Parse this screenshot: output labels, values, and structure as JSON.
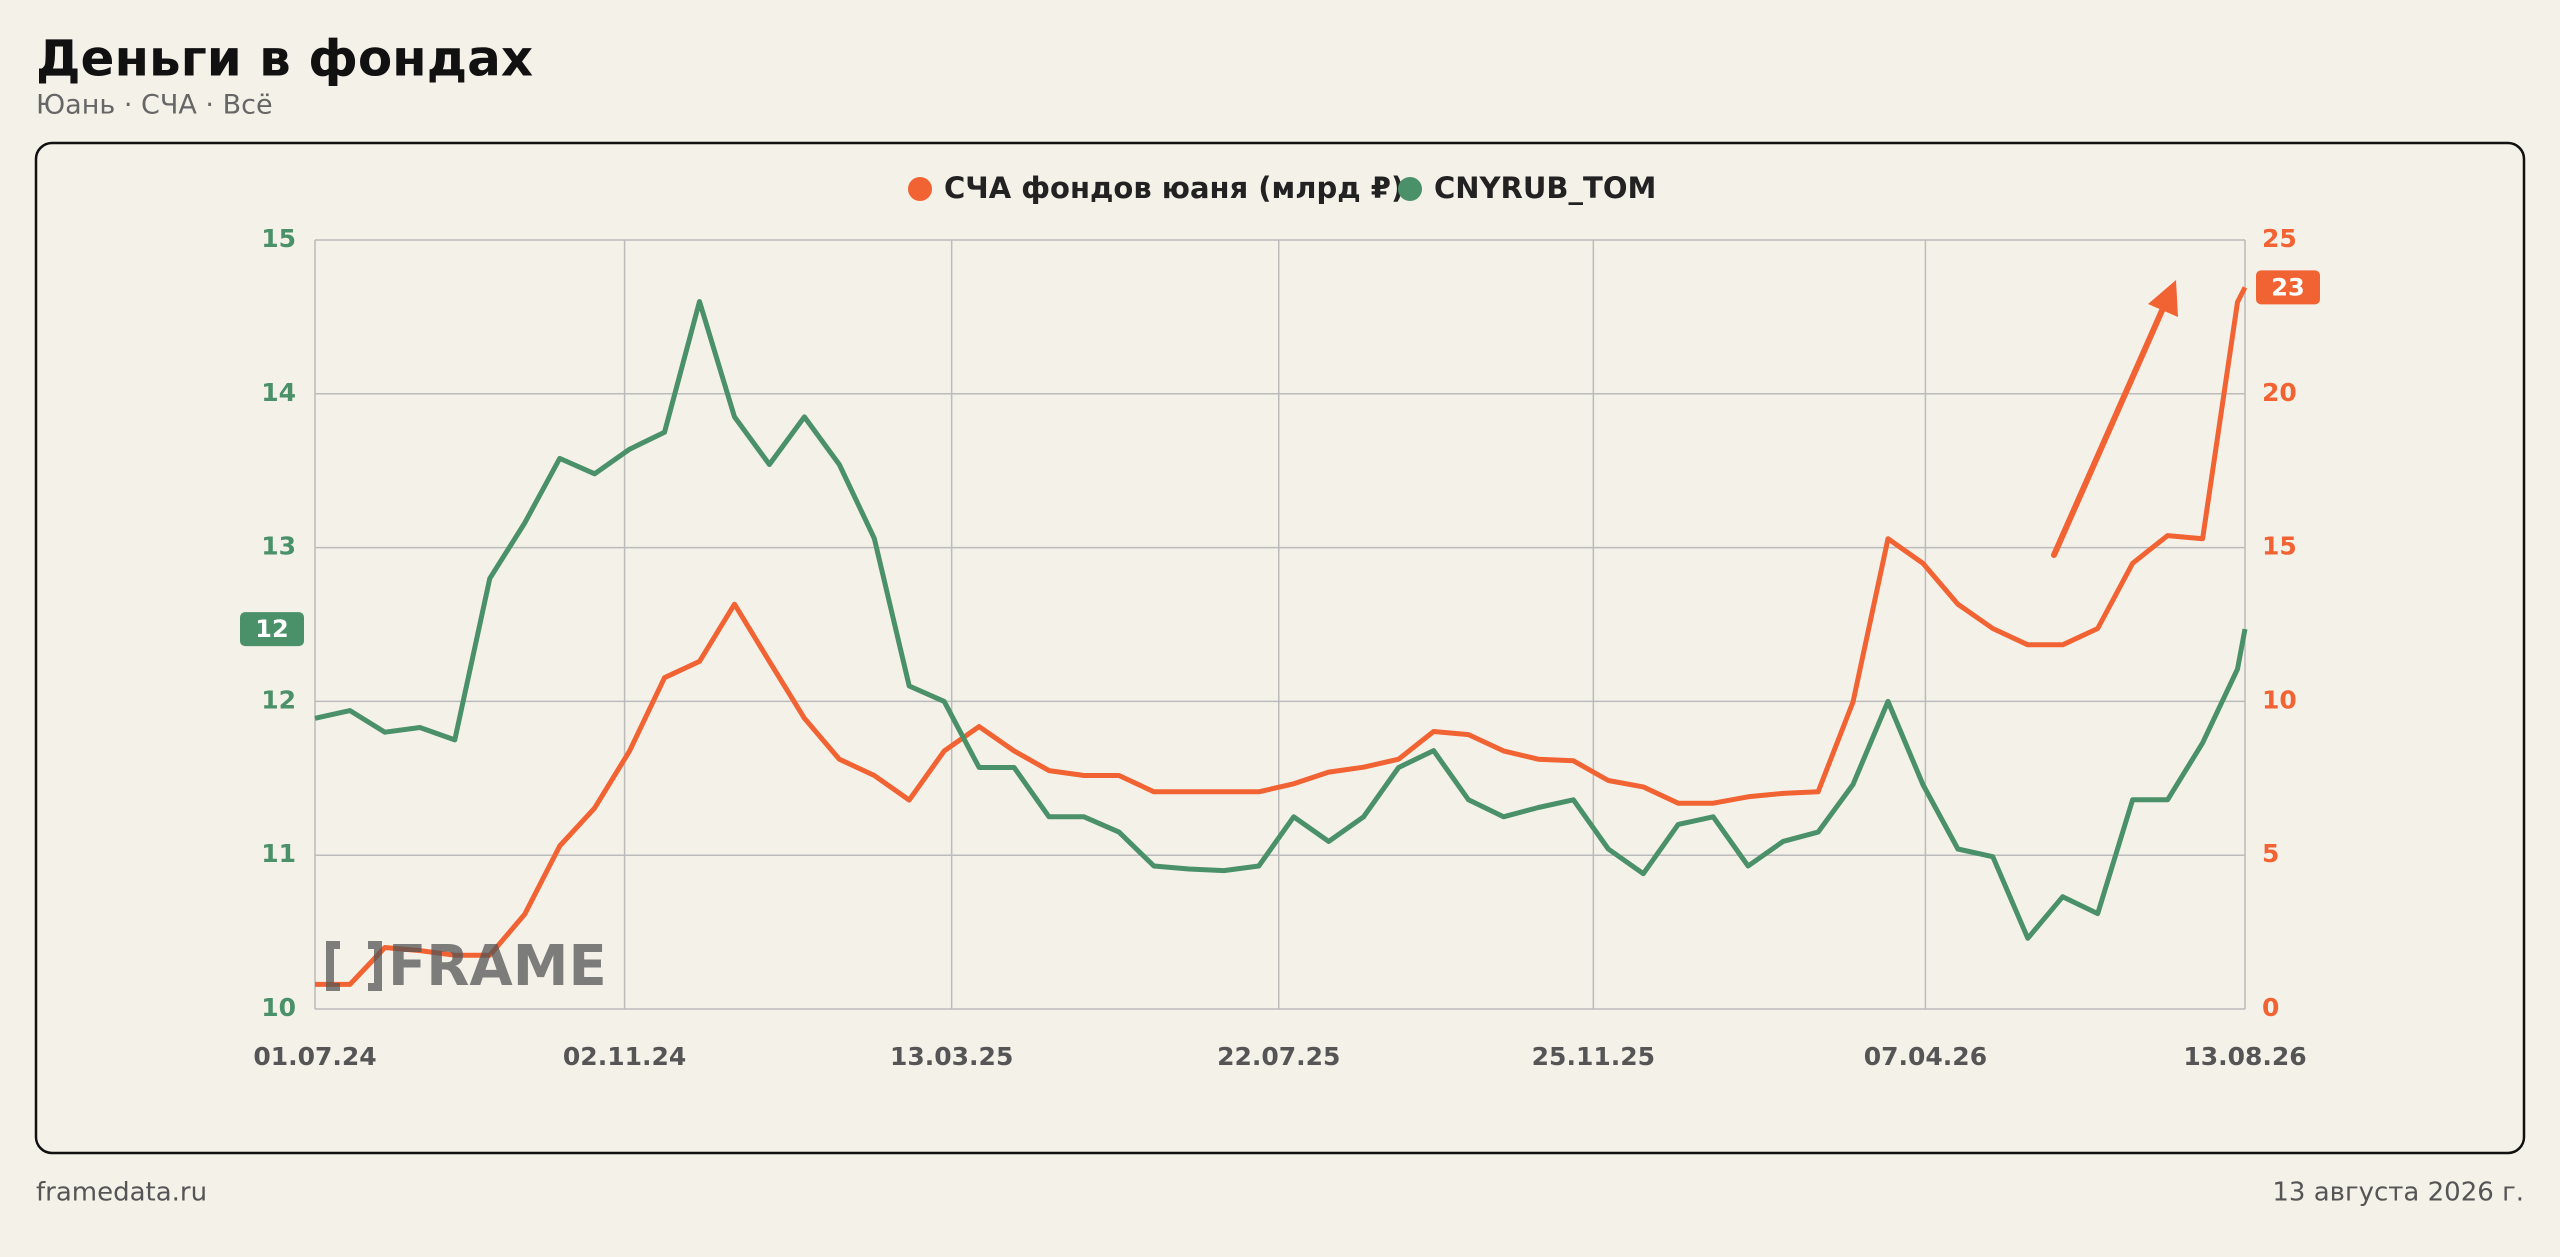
{
  "chart_data": {
    "type": "line",
    "title": "Деньги в фондах",
    "subtitle": "Юань · СЧА · Всё",
    "source": "framedata.ru",
    "date": "13 августа 2026 г.",
    "watermark": "FRAME",
    "x": [
      "2024-07-01",
      "2024-07-15",
      "2024-07-29",
      "2024-08-12",
      "2024-08-26",
      "2024-09-09",
      "2024-09-23",
      "2024-10-07",
      "2024-10-21",
      "2024-11-04",
      "2024-11-18",
      "2024-12-02",
      "2024-12-16",
      "2024-12-30",
      "2025-01-13",
      "2025-01-27",
      "2025-02-10",
      "2025-02-24",
      "2025-03-10",
      "2025-03-24",
      "2025-04-07",
      "2025-04-21",
      "2025-05-05",
      "2025-05-19",
      "2025-06-02",
      "2025-06-16",
      "2025-06-30",
      "2025-07-14",
      "2025-07-28",
      "2025-08-11",
      "2025-08-25",
      "2025-09-08",
      "2025-09-22",
      "2025-10-06",
      "2025-10-20",
      "2025-11-03",
      "2025-11-17",
      "2025-12-01",
      "2025-12-15",
      "2025-12-29",
      "2026-01-12",
      "2026-01-26",
      "2026-02-09",
      "2026-02-23",
      "2026-03-09",
      "2026-03-23",
      "2026-04-06",
      "2026-04-20",
      "2026-05-04",
      "2026-05-18",
      "2026-06-01",
      "2026-06-15",
      "2026-06-29",
      "2026-07-13",
      "2026-07-27",
      "2026-08-10",
      "2026-08-13"
    ],
    "series": [
      {
        "name": "СЧА фондов юаня (млрд ₽)",
        "color": "#f26333",
        "axis": "y2",
        "end_label": "23",
        "values": [
          0.8,
          0.8,
          2.0,
          1.9,
          1.75,
          1.75,
          3.08,
          5.3,
          6.53,
          8.39,
          10.77,
          11.3,
          13.16,
          11.3,
          9.45,
          8.12,
          7.59,
          6.79,
          8.39,
          9.18,
          8.39,
          7.75,
          7.59,
          7.59,
          7.06,
          7.06,
          7.06,
          7.06,
          7.32,
          7.7,
          7.86,
          8.12,
          9.02,
          8.92,
          8.39,
          8.12,
          8.07,
          7.43,
          7.22,
          6.69,
          6.69,
          6.9,
          7.01,
          7.06,
          9.98,
          15.29,
          14.49,
          13.16,
          12.37,
          11.84,
          11.84,
          12.37,
          14.49,
          15.39,
          15.29,
          22.98,
          23.46
        ]
      },
      {
        "name": "CNYRUB_TOM",
        "color": "#4a9068",
        "end_label": "12",
        "values": [
          11.89,
          11.94,
          11.8,
          11.83,
          11.75,
          12.8,
          13.16,
          13.58,
          13.48,
          13.64,
          13.75,
          14.6,
          13.85,
          13.54,
          13.85,
          13.54,
          13.06,
          12.1,
          12.0,
          11.57,
          11.57,
          11.25,
          11.25,
          11.15,
          10.93,
          10.91,
          10.9,
          10.93,
          11.25,
          11.09,
          11.25,
          11.57,
          11.68,
          11.36,
          11.25,
          11.31,
          11.36,
          11.04,
          10.88,
          11.2,
          11.25,
          10.93,
          11.09,
          11.15,
          11.46,
          12.0,
          11.46,
          11.04,
          10.99,
          10.46,
          10.73,
          10.62,
          11.36,
          11.36,
          11.73,
          12.21,
          12.47
        ]
      }
    ],
    "xlim": [
      "2024-07-01",
      "2026-08-13"
    ],
    "xticks": [
      {
        "value": "2024-07-01",
        "label": "01.07.24"
      },
      {
        "value": "2024-11-02",
        "label": "02.11.24"
      },
      {
        "value": "2025-03-13",
        "label": "13.03.25"
      },
      {
        "value": "2025-07-22",
        "label": "22.07.25"
      },
      {
        "value": "2025-11-25",
        "label": "25.11.25"
      },
      {
        "value": "2026-04-07",
        "label": "07.04.26"
      },
      {
        "value": "2026-08-13",
        "label": "13.08.26"
      }
    ],
    "ylim": [
      10,
      15
    ],
    "yticks": [
      10,
      11,
      12,
      13,
      14,
      15
    ],
    "y2lim": [
      0,
      25
    ],
    "y2ticks": [
      0,
      5,
      10,
      15,
      20,
      25
    ],
    "grid": true
  }
}
